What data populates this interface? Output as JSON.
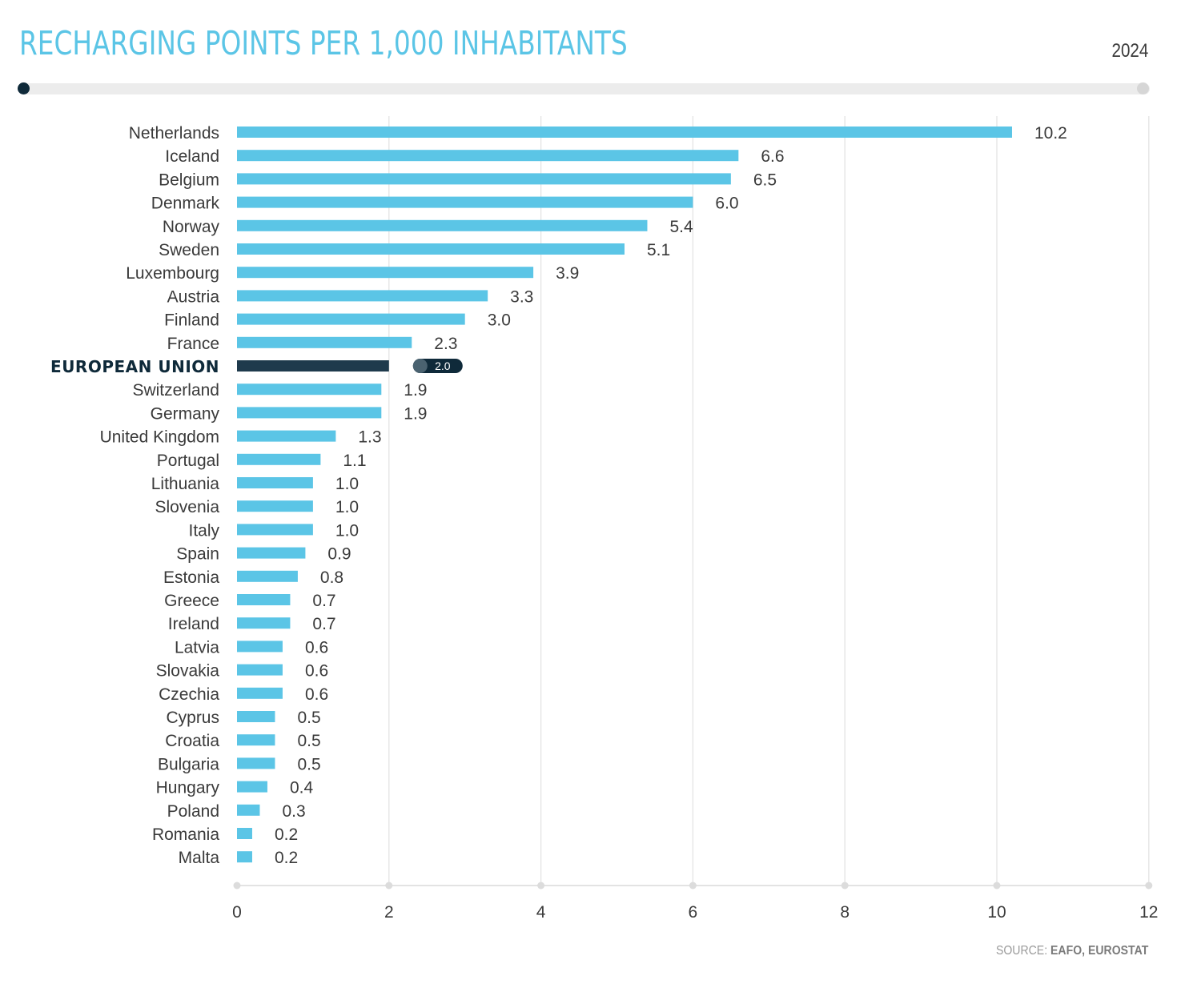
{
  "header": {
    "title": "RECHARGING POINTS PER 1,000 INHABITANTS",
    "year_label": "2024"
  },
  "footer": {
    "source_prefix": "SOURCE:",
    "source_name": "EAFO, EUROSTAT"
  },
  "colors": {
    "bar": "#5bc5e6",
    "highlight": "#1e3a4c",
    "title": "#5bc5e6",
    "label": "#3a3a3a"
  },
  "chart_data": {
    "type": "bar",
    "orientation": "horizontal",
    "title": "RECHARGING POINTS PER 1,000 INHABITANTS",
    "xlim": [
      0,
      12
    ],
    "xticks": [
      0,
      2,
      4,
      6,
      8,
      10,
      12
    ],
    "grid": true,
    "highlight_category": "EUROPEAN UNION",
    "categories": [
      "Netherlands",
      "Iceland",
      "Belgium",
      "Denmark",
      "Norway",
      "Sweden",
      "Luxembourg",
      "Austria",
      "Finland",
      "France",
      "EUROPEAN UNION",
      "Switzerland",
      "Germany",
      "United Kingdom",
      "Portugal",
      "Lithuania",
      "Slovenia",
      "Italy",
      "Spain",
      "Estonia",
      "Greece",
      "Ireland",
      "Latvia",
      "Slovakia",
      "Czechia",
      "Cyprus",
      "Croatia",
      "Bulgaria",
      "Hungary",
      "Poland",
      "Romania",
      "Malta"
    ],
    "values": [
      10.2,
      6.6,
      6.5,
      6.0,
      5.4,
      5.1,
      3.9,
      3.3,
      3.0,
      2.3,
      2.0,
      1.9,
      1.9,
      1.3,
      1.1,
      1.0,
      1.0,
      1.0,
      0.9,
      0.8,
      0.7,
      0.7,
      0.6,
      0.6,
      0.6,
      0.5,
      0.5,
      0.5,
      0.4,
      0.3,
      0.2,
      0.2
    ],
    "value_labels": [
      "10.2",
      "6.6",
      "6.5",
      "6.0",
      "5.4",
      "5.1",
      "3.9",
      "3.3",
      "3.0",
      "2.3",
      "2.0",
      "1.9",
      "1.9",
      "1.3",
      "1.1",
      "1.0",
      "1.0",
      "1.0",
      "0.9",
      "0.8",
      "0.7",
      "0.7",
      "0.6",
      "0.6",
      "0.6",
      "0.5",
      "0.5",
      "0.5",
      "0.4",
      "0.3",
      "0.2",
      "0.2"
    ]
  }
}
